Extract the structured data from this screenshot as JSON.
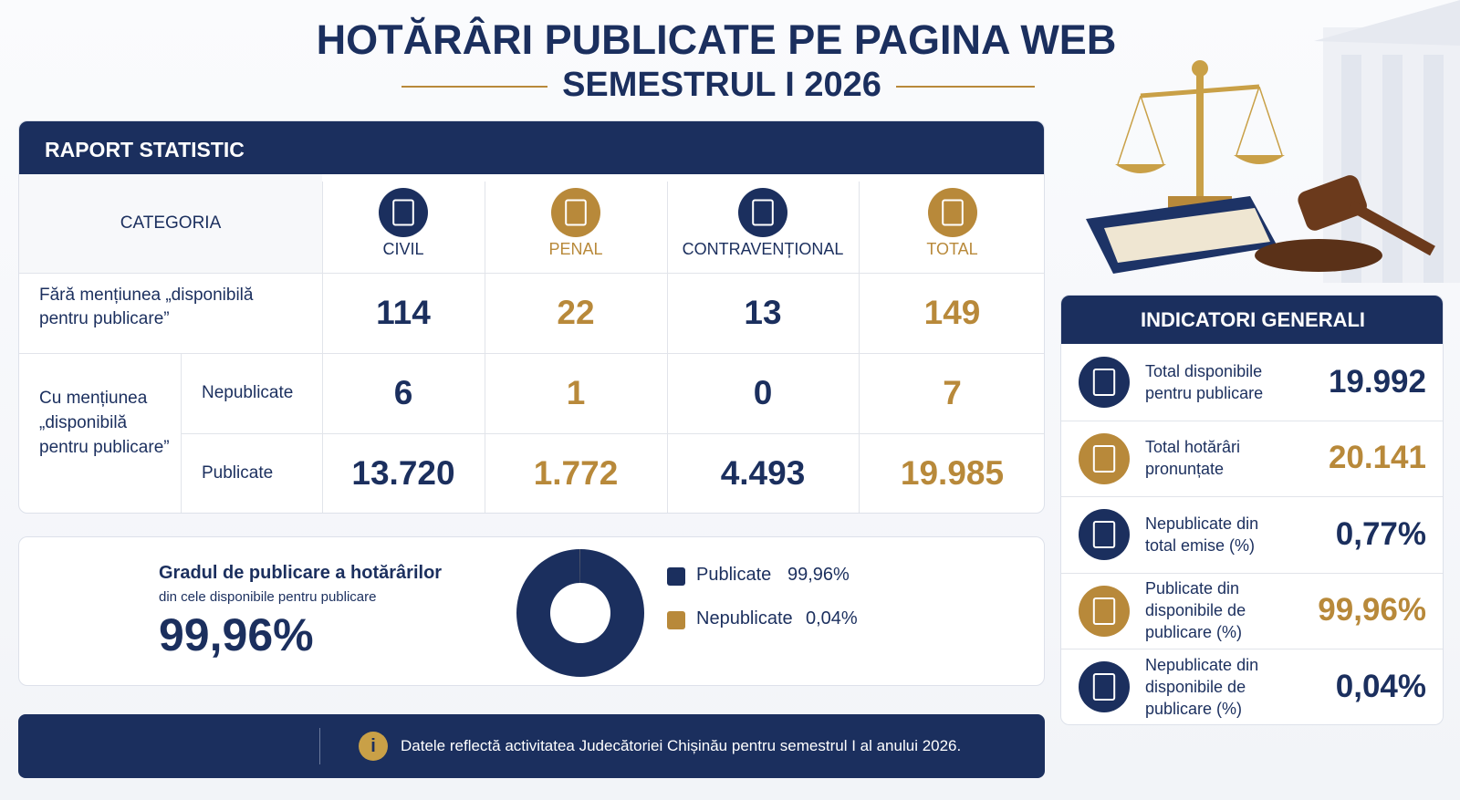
{
  "header": {
    "title": "HOTĂRÂRI PUBLICATE PE PAGINA WEB",
    "subtitle": "SEMESTRUL I 2026"
  },
  "report": {
    "title": "RAPORT STATISTIC",
    "column_header": "CATEGORIA",
    "columns": [
      "CIVIL",
      "PENAL",
      "CONTRAVENȚIONAL",
      "TOTAL"
    ],
    "rows": [
      {
        "label": "Fără mențiunea „disponibilă pentru publicare”",
        "values": [
          "114",
          "22",
          "13",
          "149"
        ]
      },
      {
        "label": "Nepublicate",
        "values": [
          "6",
          "1",
          "0",
          "7"
        ]
      },
      {
        "label": "Publicate",
        "values": [
          "13.720",
          "1.772",
          "4.493",
          "19.985"
        ]
      }
    ],
    "group_label": "Cu mențiunea „disponibilă pentru publicare”"
  },
  "chart_data": {
    "type": "pie",
    "title": "Gradul de publicare a hotărârilor",
    "subtitle": "din cele disponibile pentru publicare",
    "categories": [
      "Publicate",
      "Nepublicate"
    ],
    "values": [
      99.96,
      0.04
    ],
    "value_labels": [
      "99,96%",
      "0,04%"
    ],
    "colors": [
      "#1b2f5e",
      "#b8893a"
    ]
  },
  "indicators": {
    "title": "INDICATORI GENERALI",
    "items": [
      {
        "label": "Total disponibile pentru publicare",
        "value": "19.992"
      },
      {
        "label": "Total hotărâri pronunțate",
        "value": "20.141"
      },
      {
        "label": "Nepublicate din total emise (%)",
        "value": "0,77%"
      },
      {
        "label": "Publicate din disponibile de publicare (%)",
        "value": "99,96%"
      },
      {
        "label": "Nepublicate din disponibile de publicare (%)",
        "value": "0,04%"
      }
    ]
  },
  "footer": {
    "note": "Datele reflectă activitatea Judecătoriei Chișinău pentru semestrul I al anului 2026."
  }
}
